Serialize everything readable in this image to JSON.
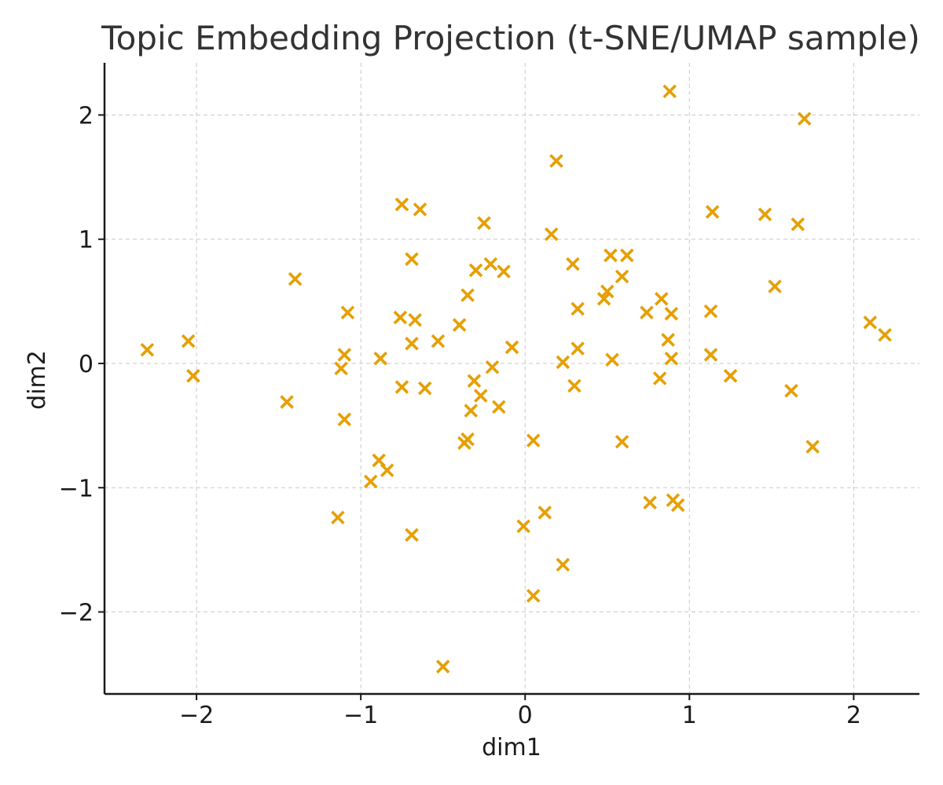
{
  "chart_data": {
    "type": "scatter",
    "title": "Topic Embedding Projection (t-SNE/UMAP sample)",
    "xlabel": "dim1",
    "ylabel": "dim2",
    "xlim": [
      -2.56,
      2.4
    ],
    "ylim": [
      -2.66,
      2.42
    ],
    "xticks": [
      -2,
      -1,
      0,
      1,
      2
    ],
    "yticks": [
      -2,
      -1,
      0,
      1,
      2
    ],
    "xtick_labels": [
      "−2",
      "−1",
      "0",
      "1",
      "2"
    ],
    "ytick_labels": [
      "−2",
      "−1",
      "0",
      "1",
      "2"
    ],
    "grid": true,
    "marker": "x",
    "color": "#E69F00",
    "x": [
      0.88,
      1.7,
      0.19,
      -0.75,
      -0.64,
      -0.25,
      0.16,
      1.14,
      1.46,
      1.66,
      -0.69,
      0.52,
      0.62,
      0.29,
      -0.21,
      -0.3,
      -0.13,
      -1.4,
      0.59,
      1.52,
      -0.35,
      0.5,
      0.48,
      0.83,
      -1.08,
      -0.76,
      -0.67,
      -0.4,
      0.32,
      0.74,
      0.89,
      1.13,
      2.1,
      2.19,
      -0.53,
      -0.69,
      -0.08,
      0.87,
      0.32,
      -2.05,
      -2.3,
      -1.1,
      -0.88,
      1.13,
      0.23,
      0.53,
      0.89,
      -0.2,
      -1.12,
      -2.02,
      1.25,
      -0.75,
      -0.61,
      -0.31,
      0.3,
      0.82,
      1.62,
      -0.27,
      -1.45,
      -0.16,
      -0.33,
      -1.1,
      -0.37,
      -0.35,
      0.05,
      0.59,
      1.75,
      -0.89,
      -0.84,
      -0.94,
      0.76,
      0.9,
      0.93,
      -1.14,
      0.12,
      -0.69,
      -0.01,
      0.23,
      0.05,
      -0.5
    ],
    "y": [
      2.19,
      1.97,
      1.63,
      1.28,
      1.24,
      1.13,
      1.04,
      1.22,
      1.2,
      1.12,
      0.84,
      0.87,
      0.87,
      0.8,
      0.8,
      0.75,
      0.74,
      0.68,
      0.7,
      0.62,
      0.55,
      0.58,
      0.52,
      0.52,
      0.41,
      0.37,
      0.35,
      0.31,
      0.44,
      0.41,
      0.4,
      0.42,
      0.33,
      0.23,
      0.18,
      0.16,
      0.13,
      0.19,
      0.12,
      0.18,
      0.11,
      0.07,
      0.04,
      0.07,
      0.01,
      0.03,
      0.04,
      -0.03,
      -0.04,
      -0.1,
      -0.1,
      -0.19,
      -0.2,
      -0.14,
      -0.18,
      -0.12,
      -0.22,
      -0.26,
      -0.31,
      -0.35,
      -0.38,
      -0.45,
      -0.64,
      -0.61,
      -0.62,
      -0.63,
      -0.67,
      -0.78,
      -0.86,
      -0.95,
      -1.12,
      -1.1,
      -1.14,
      -1.24,
      -1.2,
      -1.38,
      -1.31,
      -1.62,
      -1.87,
      -2.44
    ]
  }
}
